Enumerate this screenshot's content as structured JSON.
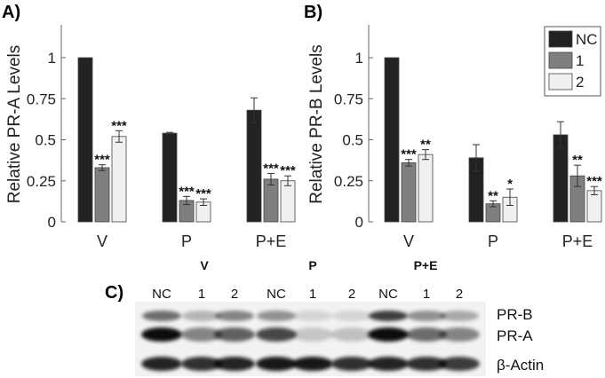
{
  "chart_data": [
    {
      "panel": "A)",
      "type": "bar",
      "categories": [
        "V",
        "P",
        "P+E"
      ],
      "ylabel": "Relative PR-A Levels",
      "ylim": [
        0,
        1.2
      ],
      "yticks": [
        0,
        0.25,
        0.5,
        0.75,
        1
      ],
      "ytick_labels": [
        "0",
        "0.25",
        "0.5",
        "0.75",
        "1"
      ],
      "series": [
        {
          "name": "NC",
          "color": "#222222",
          "values": [
            1.0,
            0.54,
            0.68
          ],
          "errors": [
            0,
            0.005,
            0.075
          ],
          "stars": [
            "",
            "",
            ""
          ]
        },
        {
          "name": "1",
          "color": "#7f7f7f",
          "values": [
            0.33,
            0.13,
            0.26
          ],
          "errors": [
            0.018,
            0.025,
            0.035
          ],
          "stars": [
            "***",
            "***",
            "***"
          ]
        },
        {
          "name": "2",
          "color": "#f0f0f0",
          "values": [
            0.52,
            0.12,
            0.25
          ],
          "errors": [
            0.035,
            0.02,
            0.03
          ],
          "stars": [
            "***",
            "***",
            "***"
          ]
        }
      ]
    },
    {
      "panel": "B)",
      "type": "bar",
      "categories": [
        "V",
        "P",
        "P+E"
      ],
      "ylabel": "Relative PR-B Levels",
      "ylim": [
        0,
        1.2
      ],
      "yticks": [
        0,
        0.25,
        0.5,
        0.75,
        1
      ],
      "ytick_labels": [
        "0",
        "0.25",
        "0.5",
        "0.75",
        "1"
      ],
      "legend": {
        "placement": "top-right",
        "entries": [
          "NC",
          "1",
          "2"
        ]
      },
      "series": [
        {
          "name": "NC",
          "color": "#222222",
          "values": [
            1.0,
            0.39,
            0.53
          ],
          "errors": [
            0,
            0.08,
            0.08
          ],
          "stars": [
            "",
            "",
            ""
          ]
        },
        {
          "name": "1",
          "color": "#7f7f7f",
          "values": [
            0.36,
            0.11,
            0.28
          ],
          "errors": [
            0.02,
            0.018,
            0.065
          ],
          "stars": [
            "***",
            "**",
            "**"
          ]
        },
        {
          "name": "2",
          "color": "#f0f0f0",
          "values": [
            0.41,
            0.15,
            0.19
          ],
          "errors": [
            0.03,
            0.05,
            0.025
          ],
          "stars": [
            "**",
            "*",
            "***"
          ]
        }
      ]
    }
  ],
  "blot": {
    "panel": "C)",
    "group_labels": [
      "V",
      "P",
      "P+E"
    ],
    "lane_labels": [
      "NC",
      "1",
      "2",
      "NC",
      "1",
      "2",
      "NC",
      "1",
      "2"
    ],
    "band_labels": [
      "PR-B",
      "PR-A",
      "β-Actin"
    ]
  }
}
